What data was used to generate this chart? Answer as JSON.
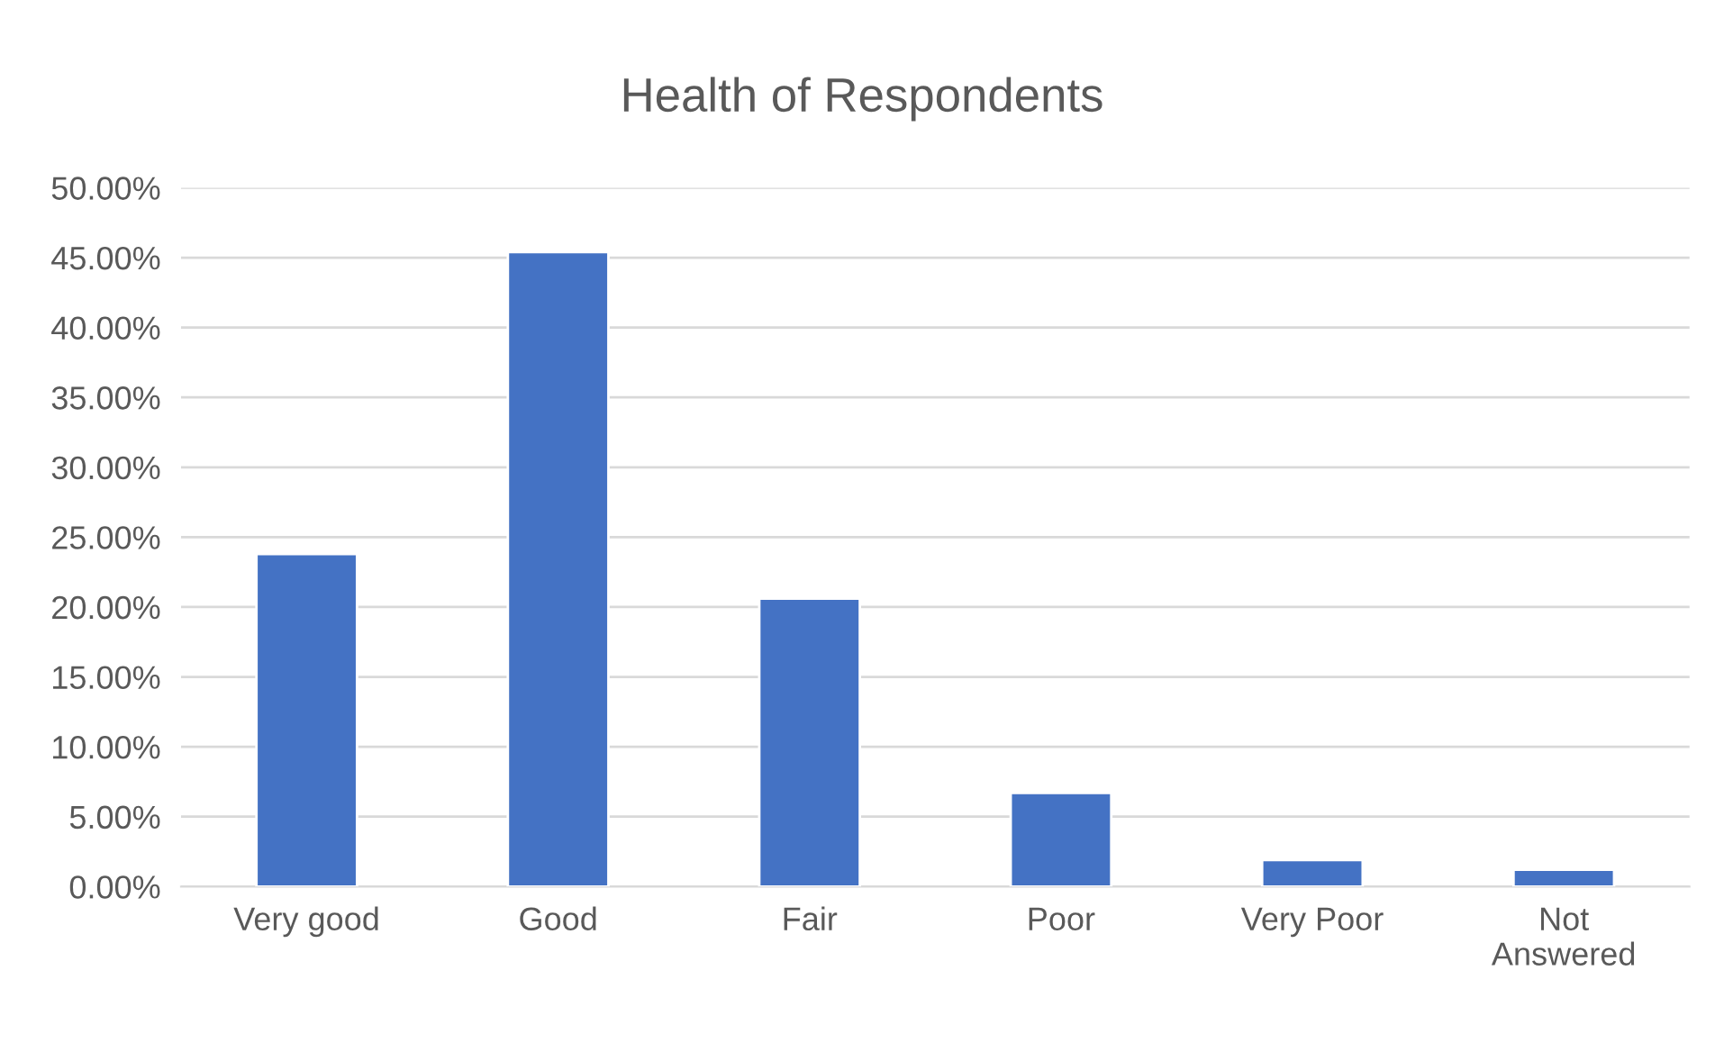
{
  "chart_data": {
    "type": "bar",
    "title": "Health of Respondents",
    "categories": [
      "Very good",
      "Good",
      "Fair",
      "Poor",
      "Very Poor",
      "Not\nAnswered"
    ],
    "values": [
      23.8,
      45.4,
      20.6,
      6.7,
      1.9,
      1.2
    ],
    "color": "#4472c4",
    "ylim": [
      0,
      50
    ],
    "yticks": [
      {
        "value": 0,
        "label": "0.00%"
      },
      {
        "value": 5,
        "label": "5.00%"
      },
      {
        "value": 10,
        "label": "10.00%"
      },
      {
        "value": 15,
        "label": "15.00%"
      },
      {
        "value": 20,
        "label": "20.00%"
      },
      {
        "value": 25,
        "label": "25.00%"
      },
      {
        "value": 30,
        "label": "30.00%"
      },
      {
        "value": 35,
        "label": "35.00%"
      },
      {
        "value": 40,
        "label": "40.00%"
      },
      {
        "value": 45,
        "label": "45.00%"
      },
      {
        "value": 50,
        "label": "50.00%"
      }
    ],
    "grid": "y",
    "legend": false
  }
}
